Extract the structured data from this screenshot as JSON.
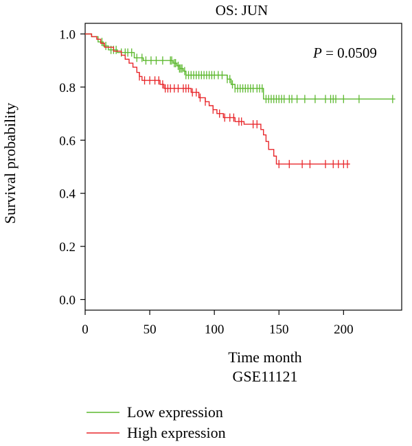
{
  "chart_data": {
    "type": "line",
    "title": "OS: JUN",
    "xlabel": "Time month",
    "subtitle": "GSE11121",
    "ylabel": "Survival probability",
    "annotation": {
      "prefix": "P",
      "text": " = 0.0509"
    },
    "xlim": [
      0,
      245
    ],
    "ylim": [
      -0.04,
      1.04
    ],
    "x_ticks": [
      0,
      50,
      100,
      150,
      200
    ],
    "y_ticks": [
      0.0,
      0.2,
      0.4,
      0.6,
      0.8,
      1.0
    ],
    "x_tick_labels": [
      "0",
      "50",
      "100",
      "150",
      "200"
    ],
    "y_tick_labels": [
      "0.0",
      "0.2",
      "0.4",
      "0.6",
      "0.8",
      "1.0"
    ],
    "grid": false,
    "legend_position": "bottom-left",
    "series": [
      {
        "name": "Low expression",
        "color": "#5cb82e",
        "steps": [
          [
            0,
            1.0
          ],
          [
            5,
            0.99
          ],
          [
            10,
            0.97
          ],
          [
            14,
            0.955
          ],
          [
            18,
            0.94
          ],
          [
            25,
            0.93
          ],
          [
            38,
            0.91
          ],
          [
            45,
            0.9
          ],
          [
            68,
            0.89
          ],
          [
            71,
            0.88
          ],
          [
            73,
            0.87
          ],
          [
            76,
            0.86
          ],
          [
            78,
            0.845
          ],
          [
            110,
            0.83
          ],
          [
            113,
            0.81
          ],
          [
            116,
            0.795
          ],
          [
            138,
            0.755
          ],
          [
            240,
            0.755
          ]
        ],
        "censored_x": [
          13,
          16,
          20,
          22,
          24,
          28,
          31,
          33,
          36,
          40,
          44,
          47,
          51,
          55,
          60,
          66,
          67,
          69,
          70,
          72,
          73,
          74,
          75,
          77,
          78,
          80,
          82,
          84,
          86,
          88,
          90,
          92,
          94,
          96,
          98,
          100,
          103,
          106,
          110,
          112,
          114,
          116,
          118,
          120,
          122,
          124,
          126,
          128,
          130,
          133,
          135,
          137,
          140,
          142,
          144,
          146,
          148,
          150,
          152,
          154,
          158,
          160,
          164,
          170,
          178,
          186,
          190,
          192,
          194,
          200,
          212,
          238
        ]
      },
      {
        "name": "High expression",
        "color": "#e8262a",
        "steps": [
          [
            0,
            1.0
          ],
          [
            5,
            0.99
          ],
          [
            9,
            0.98
          ],
          [
            12,
            0.965
          ],
          [
            15,
            0.95
          ],
          [
            22,
            0.935
          ],
          [
            28,
            0.92
          ],
          [
            31,
            0.905
          ],
          [
            34,
            0.89
          ],
          [
            37,
            0.875
          ],
          [
            40,
            0.855
          ],
          [
            42,
            0.84
          ],
          [
            44,
            0.825
          ],
          [
            58,
            0.81
          ],
          [
            61,
            0.795
          ],
          [
            82,
            0.78
          ],
          [
            88,
            0.76
          ],
          [
            93,
            0.745
          ],
          [
            96,
            0.73
          ],
          [
            99,
            0.715
          ],
          [
            102,
            0.7
          ],
          [
            107,
            0.685
          ],
          [
            116,
            0.67
          ],
          [
            123,
            0.66
          ],
          [
            136,
            0.64
          ],
          [
            138,
            0.62
          ],
          [
            140,
            0.595
          ],
          [
            142,
            0.565
          ],
          [
            146,
            0.54
          ],
          [
            148,
            0.51
          ],
          [
            205,
            0.51
          ]
        ],
        "censored_x": [
          42,
          46,
          50,
          54,
          57,
          60,
          62,
          64,
          66,
          69,
          72,
          76,
          78,
          80,
          83,
          86,
          89,
          93,
          99,
          104,
          108,
          112,
          115,
          119,
          121,
          130,
          133,
          150,
          158,
          168,
          174,
          186,
          192,
          196,
          200,
          203
        ]
      }
    ]
  }
}
